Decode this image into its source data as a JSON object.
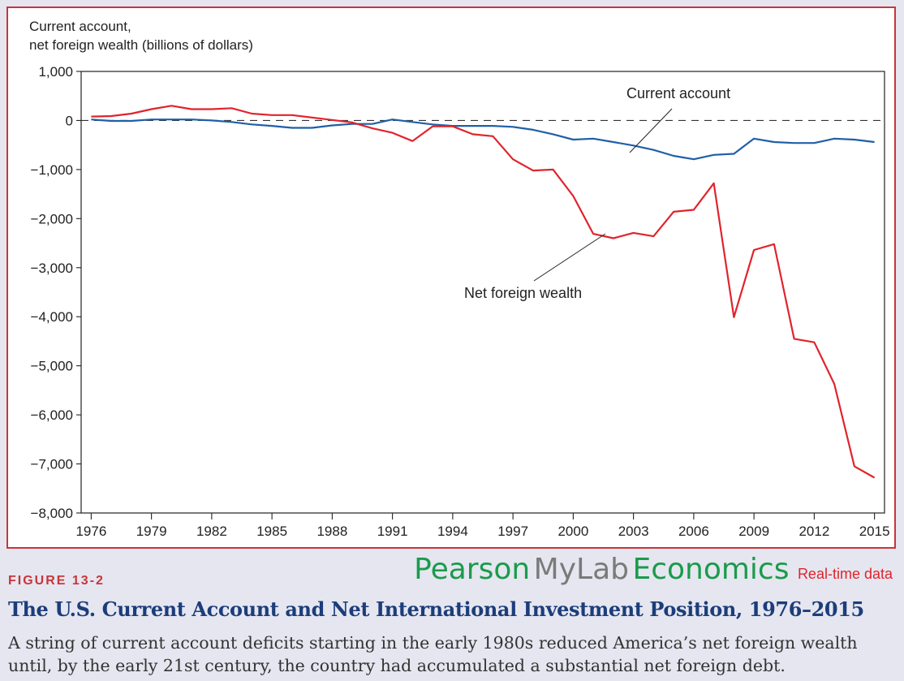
{
  "chart_data": {
    "type": "line",
    "ylabel_line1": "Current account,",
    "ylabel_line2": "net foreign wealth (billions of dollars)",
    "ylim": [
      -8000,
      1000
    ],
    "yticks": [
      1000,
      0,
      -1000,
      -2000,
      -3000,
      -4000,
      -5000,
      -6000,
      -7000,
      -8000
    ],
    "ytick_labels": [
      "1,000",
      "0",
      "−1,000",
      "−2,000",
      "−3,000",
      "−4,000",
      "−5,000",
      "−6,000",
      "−7,000",
      "−8,000"
    ],
    "xlim": [
      1975.5,
      2015.5
    ],
    "xticks": [
      1976,
      1979,
      1982,
      1985,
      1988,
      1991,
      1994,
      1997,
      2000,
      2003,
      2006,
      2009,
      2012,
      2015
    ],
    "xtick_labels": [
      "1976",
      "1979",
      "1982",
      "1985",
      "1988",
      "1991",
      "1994",
      "1997",
      "2000",
      "2003",
      "2006",
      "2009",
      "2012",
      "2015"
    ],
    "zero_line": "dashed",
    "x": [
      1976,
      1977,
      1978,
      1979,
      1980,
      1981,
      1982,
      1983,
      1984,
      1985,
      1986,
      1987,
      1988,
      1989,
      1990,
      1991,
      1992,
      1993,
      1994,
      1995,
      1996,
      1997,
      1998,
      1999,
      2000,
      2001,
      2002,
      2003,
      2004,
      2005,
      2006,
      2007,
      2008,
      2009,
      2010,
      2011,
      2012,
      2013,
      2014,
      2015
    ],
    "series": [
      {
        "name": "Current account",
        "color": "#1f5fa8",
        "values": [
          20,
          -10,
          -10,
          20,
          20,
          20,
          0,
          -30,
          -80,
          -110,
          -150,
          -150,
          -100,
          -70,
          -70,
          20,
          -30,
          -80,
          -110,
          -110,
          -110,
          -130,
          -190,
          -280,
          -390,
          -370,
          -440,
          -510,
          -600,
          -720,
          -790,
          -700,
          -680,
          -370,
          -440,
          -460,
          -460,
          -370,
          -390,
          -440
        ]
      },
      {
        "name": "Net foreign wealth",
        "color": "#e0242c",
        "values": [
          80,
          90,
          140,
          230,
          300,
          230,
          230,
          250,
          140,
          110,
          110,
          60,
          10,
          -40,
          -160,
          -250,
          -420,
          -120,
          -120,
          -280,
          -320,
          -790,
          -1020,
          -1000,
          -1540,
          -2310,
          -2400,
          -2290,
          -2360,
          -1860,
          -1820,
          -1280,
          -4010,
          -2640,
          -2520,
          -4450,
          -4520,
          -5370,
          -7050,
          -7280
        ]
      }
    ],
    "annotations": [
      {
        "text": "Current account",
        "points_to": "Current account"
      },
      {
        "text": "Net foreign wealth",
        "points_to": "Net foreign wealth"
      }
    ]
  },
  "brand": {
    "part1": "Pearson",
    "part2": "MyLab",
    "part3": "Economics",
    "tag": "Real-time data"
  },
  "figure": {
    "label": "FIGURE 13-2",
    "title": "The U.S. Current Account and Net International Investment Position, 1976–2015",
    "caption": "A string of current account deficits starting in the early 1980s reduced America’s net foreign wealth until, by the early 21st century, the country had accumulated a substantial net foreign debt."
  },
  "colors": {
    "frame": "#c8353a",
    "title": "#1c3d7a",
    "background": "#e5e6f0"
  }
}
